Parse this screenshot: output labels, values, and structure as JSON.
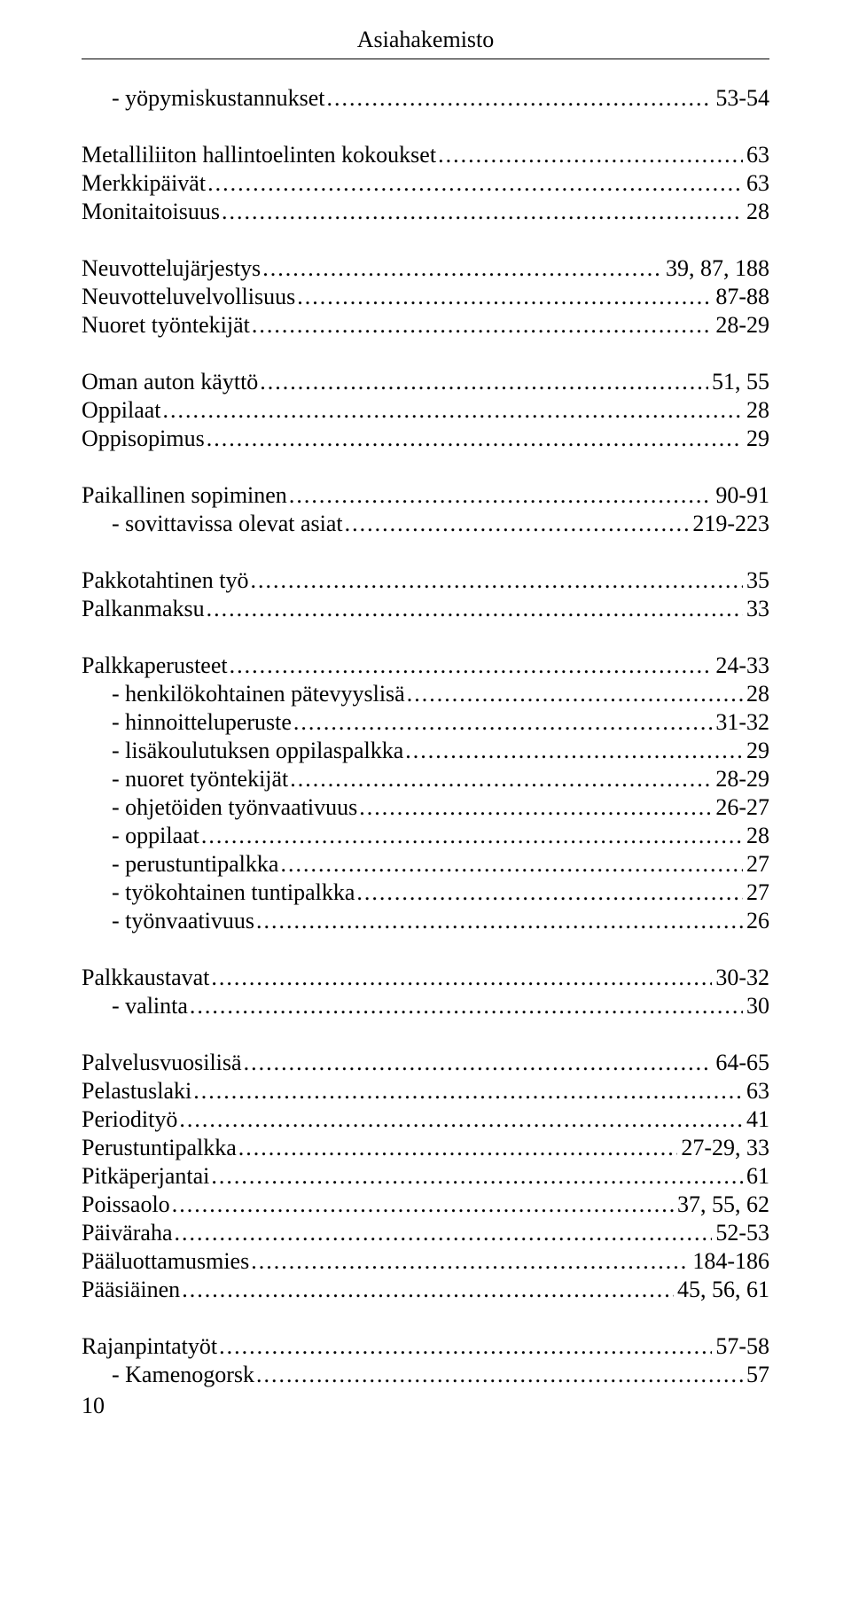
{
  "header": {
    "title": "Asiahakemisto"
  },
  "page_number": "10",
  "groups": [
    {
      "entries": [
        {
          "label": "- yöpymiskustannukset",
          "pages": "53-54",
          "sub": true
        }
      ]
    },
    {
      "entries": [
        {
          "label": "Metalliliiton hallintoelinten kokoukset",
          "pages": "63"
        },
        {
          "label": "Merkkipäivät",
          "pages": "63"
        },
        {
          "label": "Monitaitoisuus",
          "pages": "28"
        }
      ]
    },
    {
      "entries": [
        {
          "label": "Neuvottelujärjestys",
          "pages": "39, 87, 188"
        },
        {
          "label": "Neuvotteluvelvollisuus",
          "pages": "87-88"
        },
        {
          "label": "Nuoret työntekijät",
          "pages": "28-29"
        }
      ]
    },
    {
      "entries": [
        {
          "label": "Oman auton käyttö",
          "pages": "51, 55"
        },
        {
          "label": "Oppilaat",
          "pages": "28"
        },
        {
          "label": "Oppisopimus",
          "pages": "29"
        }
      ]
    },
    {
      "entries": [
        {
          "label": "Paikallinen sopiminen",
          "pages": "90-91"
        },
        {
          "label": "- sovittavissa olevat asiat",
          "pages": "219-223",
          "sub": true
        }
      ]
    },
    {
      "entries": [
        {
          "label": "Pakkotahtinen työ",
          "pages": "35"
        },
        {
          "label": "Palkanmaksu",
          "pages": "33"
        }
      ]
    },
    {
      "entries": [
        {
          "label": "Palkkaperusteet",
          "pages": "24-33"
        },
        {
          "label": "- henkilökohtainen pätevyyslisä",
          "pages": "28",
          "sub": true
        },
        {
          "label": "- hinnoitteluperuste",
          "pages": "31-32",
          "sub": true
        },
        {
          "label": "- lisäkoulutuksen oppilaspalkka",
          "pages": "29",
          "sub": true
        },
        {
          "label": "- nuoret työntekijät",
          "pages": "28-29",
          "sub": true
        },
        {
          "label": "- ohjetöiden työnvaativuus",
          "pages": "26-27",
          "sub": true
        },
        {
          "label": "- oppilaat",
          "pages": "28",
          "sub": true
        },
        {
          "label": "- perustuntipalkka",
          "pages": "27",
          "sub": true
        },
        {
          "label": "- työkohtainen tuntipalkka",
          "pages": "27",
          "sub": true
        },
        {
          "label": "- työnvaativuus",
          "pages": "26",
          "sub": true
        }
      ]
    },
    {
      "entries": [
        {
          "label": "Palkkaustavat",
          "pages": "30-32"
        },
        {
          "label": "- valinta",
          "pages": "30",
          "sub": true
        }
      ]
    },
    {
      "entries": [
        {
          "label": "Palvelusvuosilisä",
          "pages": "64-65"
        },
        {
          "label": "Pelastuslaki",
          "pages": "63"
        },
        {
          "label": "Periodityö",
          "pages": "41"
        },
        {
          "label": "Perustuntipalkka",
          "pages": "27-29, 33"
        },
        {
          "label": "Pitkäperjantai",
          "pages": "61"
        },
        {
          "label": "Poissaolo",
          "pages": "37, 55, 62"
        },
        {
          "label": "Päiväraha",
          "pages": "52-53"
        },
        {
          "label": "Pääluottamusmies",
          "pages": "184-186"
        },
        {
          "label": "Pääsiäinen",
          "pages": "45, 56, 61"
        }
      ]
    },
    {
      "entries": [
        {
          "label": "Rajanpintatyöt",
          "pages": "57-58"
        },
        {
          "label": "- Kamenogorsk",
          "pages": "57",
          "sub": true
        }
      ]
    }
  ]
}
